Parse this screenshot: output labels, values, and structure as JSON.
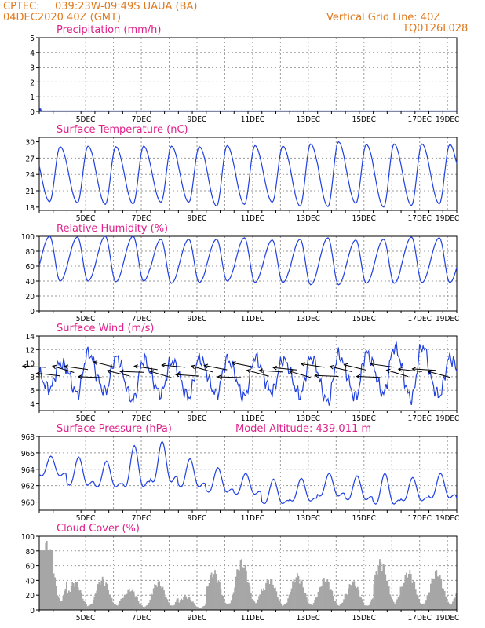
{
  "header": {
    "source": "CPTEC:",
    "location": "039:23W-09:49S  UAUA (BA)",
    "run_time": "04DEC2020 40Z (GMT)",
    "grid_note": "Vertical Grid Line: 40Z",
    "model_code": "TQ0126L028"
  },
  "chart_data": [
    {
      "type": "bar",
      "title": "Precipitation (mm/h)",
      "x_tick_labels": [
        "5DEC",
        "7DEC",
        "9DEC",
        "11DEC",
        "13DEC",
        "15DEC",
        "17DEC",
        "19DEC"
      ],
      "ylim": [
        0,
        5
      ],
      "y_ticks": [
        0,
        1,
        2,
        3,
        4,
        5
      ],
      "series": [
        {
          "hour": [
            1,
            2
          ],
          "values": [
            0.2,
            0.1
          ]
        }
      ],
      "color": "#2040e0",
      "grid": true
    },
    {
      "type": "line",
      "title": "Surface Temperature (nC)",
      "x_tick_labels": [
        "5DEC",
        "7DEC",
        "9DEC",
        "11DEC",
        "13DEC",
        "15DEC",
        "17DEC",
        "19DEC"
      ],
      "ylim": [
        17.4,
        30.8
      ],
      "y_ticks": [
        18,
        21,
        24,
        27,
        30
      ],
      "daily_max": [
        29.1,
        29.2,
        29.1,
        29.2,
        29.2,
        29.1,
        29.3,
        29.3,
        29.2,
        29.6,
        30.0,
        29.5,
        29.6,
        29.6,
        29.5,
        30.1
      ],
      "daily_min": [
        19.0,
        18.8,
        18.5,
        18.6,
        18.9,
        18.9,
        18.2,
        18.5,
        18.9,
        18.2,
        18.1,
        18.7,
        18.0,
        18.3,
        18.6,
        18.3
      ],
      "color": "#2040e0",
      "grid": true
    },
    {
      "type": "line",
      "title": "Relative Humidity (%)",
      "x_tick_labels": [
        "5DEC",
        "7DEC",
        "9DEC",
        "11DEC",
        "13DEC",
        "15DEC",
        "17DEC",
        "19DEC"
      ],
      "ylim": [
        0,
        100
      ],
      "y_ticks": [
        0,
        20,
        40,
        60,
        80,
        100
      ],
      "daily_max": [
        100,
        99,
        100,
        100,
        96,
        96,
        96,
        98,
        95,
        96,
        98,
        95,
        96,
        99,
        98,
        100
      ],
      "daily_min": [
        40,
        40,
        39,
        40,
        37,
        38,
        40,
        38,
        38,
        35,
        35,
        37,
        37,
        38,
        38,
        36
      ],
      "color": "#2040e0",
      "grid": true
    },
    {
      "type": "line",
      "title": "Surface Wind (m/s)",
      "x_tick_labels": [
        "5DEC",
        "7DEC",
        "9DEC",
        "11DEC",
        "13DEC",
        "15DEC",
        "17DEC",
        "19DEC"
      ],
      "ylim": [
        3,
        14
      ],
      "y_ticks": [
        4,
        6,
        8,
        10,
        12,
        14
      ],
      "daily_max": [
        10.0,
        11.5,
        10.8,
        10.5,
        10.3,
        10.7,
        10.5,
        10.8,
        10.5,
        10.8,
        11.2,
        11.5,
        12.3,
        12.5,
        10.8,
        10.3
      ],
      "daily_min": [
        6.2,
        5.5,
        5.8,
        4.5,
        5.5,
        5.0,
        5.5,
        5.0,
        5.8,
        5.3,
        4.3,
        5.0,
        5.5,
        4.8,
        5.2,
        5.5
      ],
      "wind_arrows": "black vector arrows along the 8–10 m/s band, mostly pointing west-northwest",
      "color": "#2040e0",
      "grid": true
    },
    {
      "type": "line",
      "title": "Surface Pressure (hPa)",
      "annotation": "Model Altitude: 439.011 m",
      "x_tick_labels": [
        "5DEC",
        "7DEC",
        "9DEC",
        "11DEC",
        "13DEC",
        "15DEC",
        "17DEC",
        "19DEC"
      ],
      "ylim": [
        959,
        968
      ],
      "y_ticks": [
        960,
        962,
        964,
        966,
        968
      ],
      "daily_max": [
        965.6,
        965.5,
        965.0,
        966.9,
        967.4,
        965.3,
        964.2,
        963.5,
        962.8,
        962.9,
        963.5,
        963.2,
        963.5,
        963.0,
        963.5,
        962.9
      ],
      "daily_min": [
        962.4,
        960.9,
        960.8,
        960.2,
        960.8,
        960.7,
        960.2,
        960.1,
        958.8,
        959.2,
        959.8,
        959.3,
        958.5,
        959.2,
        959.5,
        959.4
      ],
      "color": "#2040e0",
      "grid": true
    },
    {
      "type": "bar",
      "title": "Cloud Cover (%)",
      "x_tick_labels": [
        "5DEC",
        "7DEC",
        "9DEC",
        "11DEC",
        "13DEC",
        "15DEC",
        "17DEC",
        "19DEC"
      ],
      "ylim": [
        0,
        100
      ],
      "y_ticks": [
        0,
        20,
        40,
        60,
        80,
        100
      ],
      "daily_peak": [
        95,
        40,
        45,
        30,
        40,
        20,
        55,
        70,
        45,
        50,
        45,
        40,
        70,
        55,
        55,
        95
      ],
      "color": "#a6a6a6",
      "grid": true
    }
  ]
}
